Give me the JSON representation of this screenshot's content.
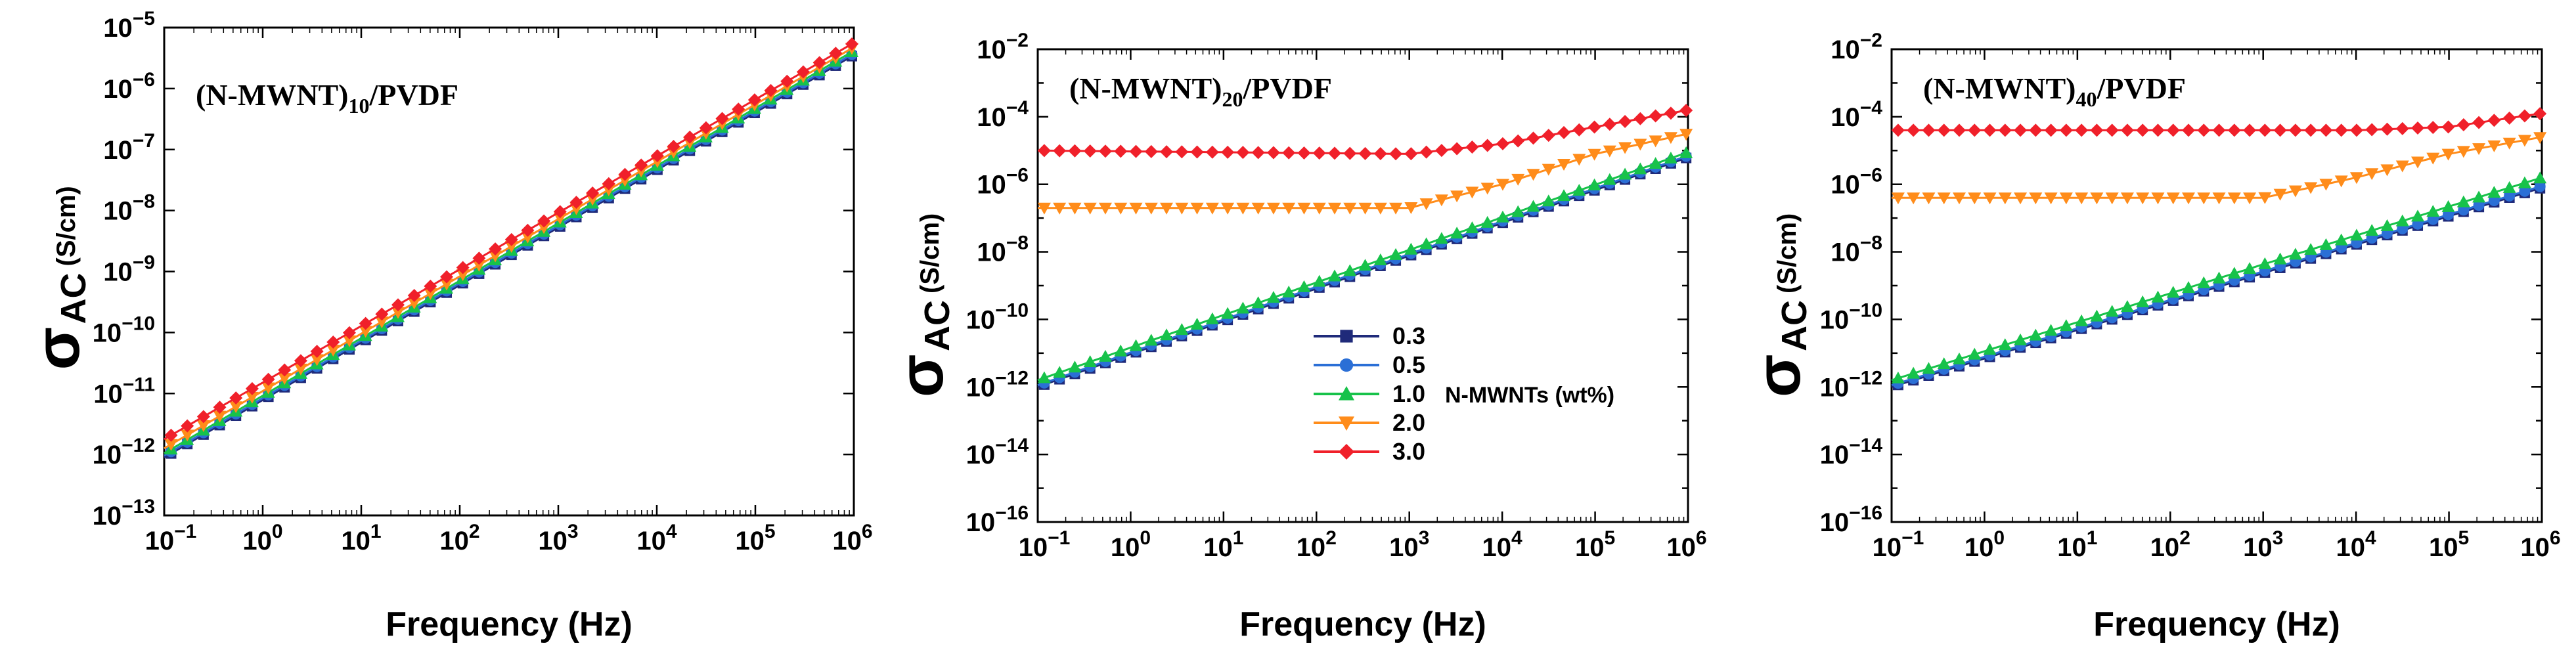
{
  "colors": {
    "s03": "#1f2a7a",
    "s05": "#2b6fd6",
    "s10": "#17c24a",
    "s20": "#ff8c1a",
    "s30": "#f0202a",
    "frame": "#000000"
  },
  "legend": {
    "entries": [
      {
        "label": "0.3",
        "color": "#1f2a7a",
        "marker": "square"
      },
      {
        "label": "0.5",
        "color": "#2b6fd6",
        "marker": "circle"
      },
      {
        "label": "1.0",
        "color": "#17c24a",
        "marker": "triangle-up"
      },
      {
        "label": "2.0",
        "color": "#ff8c1a",
        "marker": "triangle-down"
      },
      {
        "label": "3.0",
        "color": "#f0202a",
        "marker": "diamond"
      }
    ],
    "caption": "N-MWNTs  (wt%)",
    "placement": "center of panel 2"
  },
  "chart_data": [
    {
      "type": "scatter",
      "title": "(N-MWNT)10/PVDF",
      "title_main": "(N-MWNT)",
      "title_sub": "10",
      "title_tail": "/PVDF",
      "xlabel": "Frequency (Hz)",
      "ylabel_main": "σ",
      "ylabel_sub": "AC",
      "ylabel_units": "(S/cm)",
      "x_scale": "log",
      "y_scale": "log",
      "xlim_exp": [
        -1,
        6
      ],
      "ylim_exp": [
        -13,
        -5
      ],
      "x_ticks": [
        -1,
        0,
        1,
        2,
        3,
        4,
        5,
        6
      ],
      "y_ticks": [
        -13,
        -12,
        -11,
        -10,
        -9,
        -8,
        -7,
        -6,
        -5
      ],
      "series": [
        {
          "name": "0.3",
          "log_sigma_at": [
            [
              -1,
              -12.05
            ],
            [
              6,
              -5.45
            ]
          ]
        },
        {
          "name": "0.5",
          "log_sigma_at": [
            [
              -1,
              -12.02
            ],
            [
              6,
              -5.42
            ]
          ]
        },
        {
          "name": "1.0",
          "log_sigma_at": [
            [
              -1,
              -11.98
            ],
            [
              6,
              -5.38
            ]
          ]
        },
        {
          "name": "2.0",
          "log_sigma_at": [
            [
              -1,
              -11.9
            ],
            [
              6,
              -5.32
            ]
          ]
        },
        {
          "name": "3.0",
          "log_sigma_at": [
            [
              -1,
              -11.75
            ],
            [
              6,
              -5.25
            ]
          ]
        }
      ]
    },
    {
      "type": "scatter",
      "title": "(N-MWNT)20/PVDF",
      "title_main": "(N-MWNT)",
      "title_sub": "20",
      "title_tail": "/PVDF",
      "xlabel": "Frequency (Hz)",
      "ylabel_main": "σ",
      "ylabel_sub": "AC",
      "ylabel_units": "(S/cm)",
      "x_scale": "log",
      "y_scale": "log",
      "xlim_exp": [
        -1,
        6
      ],
      "ylim_exp": [
        -16,
        -2
      ],
      "x_ticks": [
        -1,
        0,
        1,
        2,
        3,
        4,
        5,
        6
      ],
      "y_ticks": [
        -16,
        -14,
        -12,
        -10,
        -8,
        -6,
        -4,
        -2
      ],
      "series": [
        {
          "name": "0.3",
          "log_sigma_at": [
            [
              -1,
              -12.0
            ],
            [
              6,
              -5.2
            ]
          ]
        },
        {
          "name": "0.5",
          "log_sigma_at": [
            [
              -1,
              -11.95
            ],
            [
              6,
              -5.15
            ]
          ]
        },
        {
          "name": "1.0",
          "log_sigma_at": [
            [
              -1,
              -11.8
            ],
            [
              6,
              -5.05
            ]
          ]
        },
        {
          "name": "2.0",
          "log_sigma_at": [
            [
              -1,
              -6.7
            ],
            [
              3,
              -6.7
            ],
            [
              4,
              -6.0
            ],
            [
              5,
              -5.1
            ],
            [
              6,
              -4.5
            ]
          ]
        },
        {
          "name": "3.0",
          "log_sigma_at": [
            [
              -1,
              -5.0
            ],
            [
              3,
              -5.1
            ],
            [
              4,
              -4.8
            ],
            [
              5,
              -4.3
            ],
            [
              6,
              -3.8
            ]
          ]
        }
      ]
    },
    {
      "type": "scatter",
      "title": "(N-MWNT)40/PVDF",
      "title_main": "(N-MWNT)",
      "title_sub": "40",
      "title_tail": "/PVDF",
      "xlabel": "Frequency (Hz)",
      "ylabel_main": "σ",
      "ylabel_sub": "AC",
      "ylabel_units": "(S/cm)",
      "x_scale": "log",
      "y_scale": "log",
      "xlim_exp": [
        -1,
        6
      ],
      "ylim_exp": [
        -16,
        -2
      ],
      "x_ticks": [
        -1,
        0,
        1,
        2,
        3,
        4,
        5,
        6
      ],
      "y_ticks": [
        -16,
        -14,
        -12,
        -10,
        -8,
        -6,
        -4,
        -2
      ],
      "series": [
        {
          "name": "0.3",
          "log_sigma_at": [
            [
              -1,
              -12.0
            ],
            [
              6,
              -6.1
            ]
          ]
        },
        {
          "name": "0.5",
          "log_sigma_at": [
            [
              -1,
              -11.95
            ],
            [
              6,
              -6.05
            ]
          ]
        },
        {
          "name": "1.0",
          "log_sigma_at": [
            [
              -1,
              -11.8
            ],
            [
              6,
              -5.8
            ]
          ]
        },
        {
          "name": "2.0",
          "log_sigma_at": [
            [
              -1,
              -6.4
            ],
            [
              3,
              -6.4
            ],
            [
              4,
              -5.8
            ],
            [
              5,
              -5.1
            ],
            [
              6,
              -4.6
            ]
          ]
        },
        {
          "name": "3.0",
          "log_sigma_at": [
            [
              -1,
              -4.4
            ],
            [
              4,
              -4.4
            ],
            [
              5,
              -4.3
            ],
            [
              6,
              -3.9
            ]
          ]
        }
      ]
    }
  ]
}
